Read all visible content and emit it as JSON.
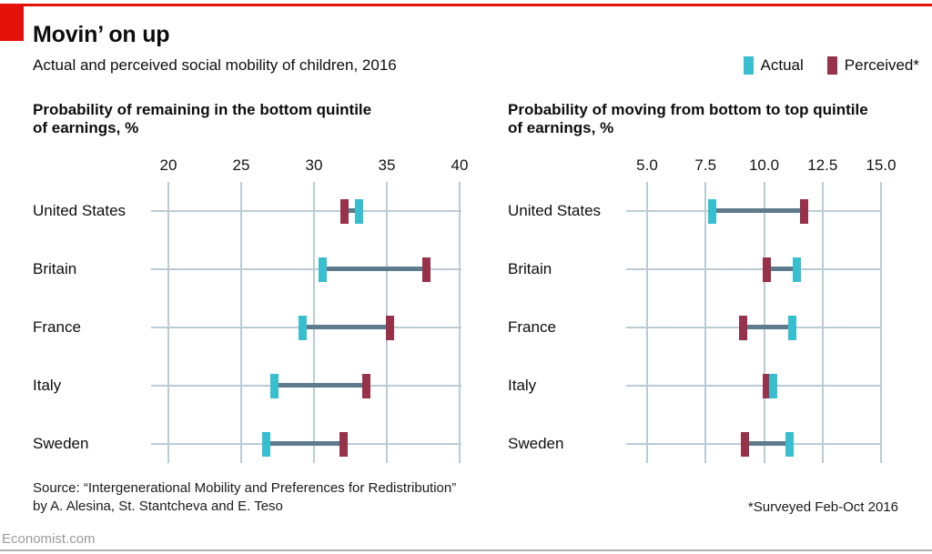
{
  "header": {
    "title": "Movin’ on up",
    "subtitle": "Actual and perceived social mobility of children, 2016"
  },
  "legend": [
    {
      "label": "Actual",
      "color_key": "actual"
    },
    {
      "label": "Perceived*",
      "color_key": "perceived"
    }
  ],
  "colors": {
    "accent_red": "#e3120b",
    "actual": "#38bfcf",
    "perceived": "#98314a",
    "connector": "#5e7b8c",
    "gridline": "#b9ccd6"
  },
  "chart_data": [
    {
      "type": "dumbbell",
      "title_lines": [
        "Probability of remaining in the bottom quintile",
        "of earnings, %"
      ],
      "xlim": [
        20,
        40
      ],
      "xticks": [
        20,
        25,
        30,
        35,
        40
      ],
      "xtick_labels": [
        "20",
        "25",
        "30",
        "35",
        "40"
      ],
      "grid": true,
      "categories": [
        "United States",
        "Britain",
        "France",
        "Italy",
        "Sweden"
      ],
      "series": [
        {
          "name": "Actual",
          "values": [
            33.1,
            30.6,
            29.2,
            27.3,
            26.7
          ]
        },
        {
          "name": "Perceived",
          "values": [
            32.1,
            37.7,
            35.2,
            33.6,
            32.0
          ]
        }
      ]
    },
    {
      "type": "dumbbell",
      "title_lines": [
        "Probability of moving from bottom to top quintile",
        "of earnings, %"
      ],
      "xlim": [
        5,
        15
      ],
      "xticks": [
        5.0,
        7.5,
        10.0,
        12.5,
        15.0
      ],
      "xtick_labels": [
        "5.0",
        "7.5",
        "10.0",
        "12.5",
        "15.0"
      ],
      "grid": true,
      "categories": [
        "United States",
        "Britain",
        "France",
        "Italy",
        "Sweden"
      ],
      "series": [
        {
          "name": "Actual",
          "values": [
            7.8,
            11.4,
            11.2,
            10.4,
            11.1
          ]
        },
        {
          "name": "Perceived",
          "values": [
            11.7,
            10.1,
            9.1,
            10.1,
            9.2
          ]
        }
      ]
    }
  ],
  "footer": {
    "source_line1": "Source: “Intergenerational Mobility and Preferences for Redistribution”",
    "source_line2": "by A. Alesina, St. Stantcheva and E. Teso",
    "footnote": "*Surveyed Feb-Oct 2016",
    "brand": "Economist.com"
  }
}
